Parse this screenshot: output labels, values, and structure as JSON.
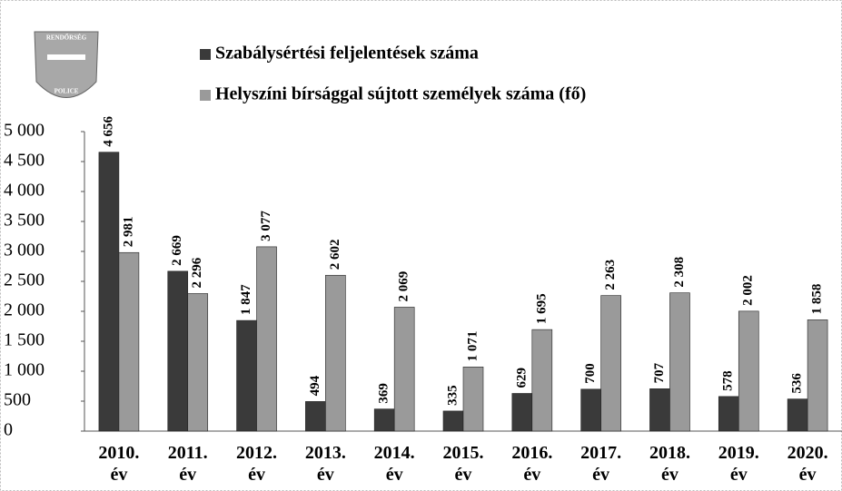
{
  "logo": [
    "RENDŐRSÉG",
    "POLICE"
  ],
  "chart_data": {
    "type": "bar",
    "categories": [
      "2010. év",
      "2011. év",
      "2012. év",
      "2013. év",
      "2014. év",
      "2015. év",
      "2016. év",
      "2017. év",
      "2018. év",
      "2019. év",
      "2020. év"
    ],
    "series": [
      {
        "name": "Szabálysértési feljelentések száma",
        "color": "#3a3a3a",
        "values": [
          4656,
          2669,
          1847,
          494,
          369,
          335,
          629,
          700,
          707,
          578,
          536
        ],
        "value_labels": [
          "4 656",
          "2 669",
          "1 847",
          "494",
          "369",
          "335",
          "629",
          "700",
          "707",
          "578",
          "536"
        ]
      },
      {
        "name": "Helyszíni bírsággal sújtott személyek száma (fő)",
        "color": "#9a9a9a",
        "values": [
          2981,
          2296,
          3077,
          2602,
          2069,
          1071,
          1695,
          2263,
          2308,
          2002,
          1858
        ],
        "value_labels": [
          "2 981",
          "2 296",
          "3 077",
          "2 602",
          "2 069",
          "1 071",
          "1 695",
          "2 263",
          "2 308",
          "2 002",
          "1 858"
        ]
      }
    ],
    "ylim": [
      0,
      5000
    ],
    "yticks": [
      0,
      500,
      {
        "value": 1000,
        "label": "1 000"
      },
      {
        "value": 1500,
        "label": "1 500"
      },
      {
        "value": 2000,
        "label": "2 000"
      },
      {
        "value": 2500,
        "label": "2 500"
      },
      {
        "value": 3000,
        "label": "3 000"
      },
      {
        "value": 3500,
        "label": "3 500"
      },
      {
        "value": 4000,
        "label": "4 000"
      },
      {
        "value": 4500,
        "label": "4 500"
      },
      {
        "value": 5000,
        "label": "5 000"
      }
    ],
    "grid": false,
    "legend": "top"
  }
}
